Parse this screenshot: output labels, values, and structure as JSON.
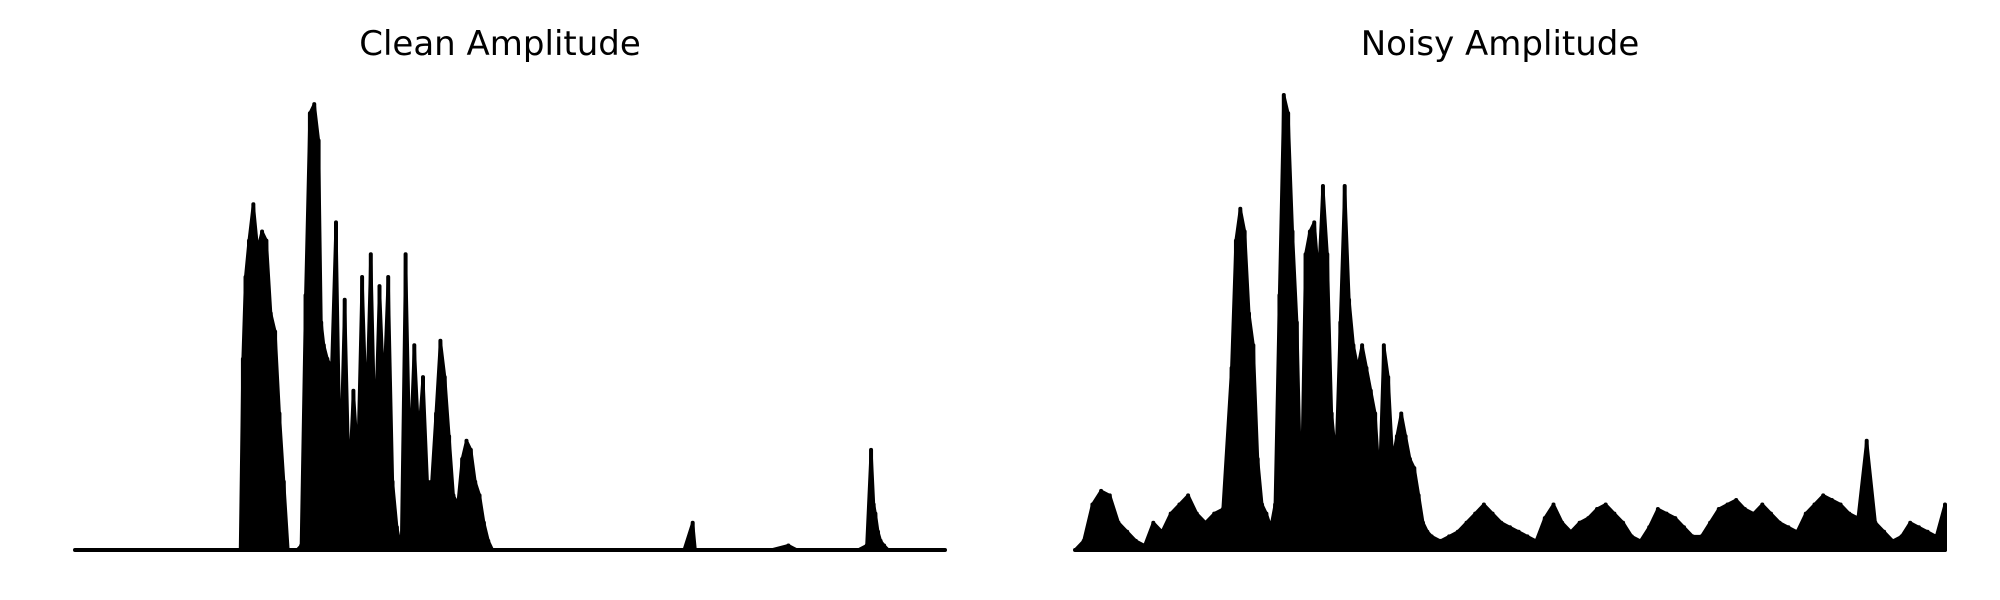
{
  "chart_data": [
    {
      "type": "area",
      "title": "Clean Amplitude",
      "xlabel": "",
      "ylabel": "",
      "axes_visible": false,
      "grid": false,
      "color": "#000000",
      "ylim": [
        0,
        1.0
      ],
      "xlim": [
        0,
        1000
      ],
      "x": [
        0,
        40,
        80,
        120,
        160,
        190,
        193,
        196,
        200,
        205,
        210,
        215,
        220,
        225,
        230,
        235,
        240,
        245,
        250,
        255,
        260,
        265,
        270,
        275,
        280,
        283,
        286,
        290,
        295,
        300,
        305,
        310,
        315,
        320,
        325,
        330,
        335,
        340,
        345,
        350,
        355,
        360,
        365,
        370,
        375,
        380,
        385,
        390,
        395,
        400,
        405,
        410,
        415,
        420,
        425,
        430,
        435,
        440,
        445,
        450,
        455,
        460,
        465,
        470,
        475,
        480,
        485,
        490,
        495,
        500,
        505,
        510,
        515,
        520,
        525,
        530,
        535,
        540,
        545,
        550,
        560,
        580,
        600,
        650,
        700,
        710,
        713,
        716,
        720,
        760,
        800,
        820,
        830,
        850,
        880,
        900,
        910,
        915,
        918,
        920,
        923,
        926,
        930,
        935,
        940,
        1000
      ],
      "y": [
        0,
        0,
        0,
        0,
        0,
        0,
        0.42,
        0.6,
        0.68,
        0.76,
        0.66,
        0.7,
        0.68,
        0.52,
        0.48,
        0.3,
        0.15,
        0.0,
        0.0,
        0.0,
        0.01,
        0.56,
        0.96,
        0.98,
        0.9,
        0.5,
        0.45,
        0.42,
        0.4,
        0.72,
        0.18,
        0.55,
        0.15,
        0.35,
        0.2,
        0.6,
        0.3,
        0.65,
        0.25,
        0.58,
        0.35,
        0.6,
        0.15,
        0.05,
        0.0,
        0.65,
        0.2,
        0.45,
        0.25,
        0.38,
        0.15,
        0.15,
        0.3,
        0.46,
        0.38,
        0.25,
        0.12,
        0.1,
        0.2,
        0.24,
        0.22,
        0.15,
        0.12,
        0.06,
        0.02,
        0.0,
        0.0,
        0.0,
        0.0,
        0.0,
        0.0,
        0.0,
        0.0,
        0.0,
        0.0,
        0.0,
        0.0,
        0.0,
        0.0,
        0.0,
        0.0,
        0.0,
        0.0,
        0.0,
        0.0,
        0.06,
        0.0,
        0.0,
        0.0,
        0.0,
        0.0,
        0.01,
        0.0,
        0.0,
        0.0,
        0.0,
        0.01,
        0.22,
        0.1,
        0.08,
        0.04,
        0.02,
        0.01,
        0.0,
        0.0,
        0.0
      ]
    },
    {
      "type": "area",
      "title": "Noisy Amplitude",
      "xlabel": "",
      "ylabel": "",
      "axes_visible": false,
      "grid": false,
      "color": "#000000",
      "ylim": [
        0,
        1.0
      ],
      "xlim": [
        0,
        1000
      ],
      "x": [
        0,
        10,
        20,
        30,
        40,
        50,
        60,
        70,
        80,
        90,
        100,
        110,
        120,
        130,
        140,
        150,
        160,
        170,
        180,
        185,
        190,
        195,
        200,
        205,
        210,
        215,
        220,
        225,
        230,
        235,
        240,
        245,
        250,
        255,
        260,
        265,
        270,
        275,
        280,
        285,
        290,
        295,
        300,
        305,
        310,
        315,
        320,
        325,
        330,
        335,
        340,
        345,
        350,
        355,
        360,
        365,
        370,
        375,
        380,
        385,
        390,
        395,
        400,
        405,
        410,
        420,
        430,
        440,
        450,
        460,
        470,
        480,
        490,
        500,
        510,
        520,
        530,
        540,
        550,
        560,
        570,
        580,
        590,
        600,
        610,
        620,
        630,
        640,
        650,
        660,
        670,
        680,
        690,
        700,
        710,
        720,
        730,
        740,
        750,
        760,
        770,
        780,
        790,
        800,
        810,
        820,
        830,
        840,
        850,
        860,
        870,
        880,
        890,
        900,
        910,
        920,
        930,
        940,
        950,
        960,
        970,
        980,
        990,
        1000
      ],
      "y": [
        0,
        0.02,
        0.1,
        0.13,
        0.12,
        0.06,
        0.04,
        0.02,
        0.01,
        0.06,
        0.04,
        0.08,
        0.1,
        0.12,
        0.08,
        0.06,
        0.08,
        0.09,
        0.4,
        0.68,
        0.75,
        0.7,
        0.52,
        0.45,
        0.2,
        0.1,
        0.08,
        0.05,
        0.1,
        0.56,
        1.0,
        0.96,
        0.7,
        0.5,
        0.1,
        0.65,
        0.7,
        0.72,
        0.6,
        0.8,
        0.65,
        0.3,
        0.2,
        0.5,
        0.8,
        0.55,
        0.45,
        0.4,
        0.45,
        0.4,
        0.35,
        0.3,
        0.15,
        0.45,
        0.38,
        0.2,
        0.25,
        0.3,
        0.25,
        0.2,
        0.18,
        0.12,
        0.06,
        0.04,
        0.03,
        0.02,
        0.03,
        0.04,
        0.06,
        0.08,
        0.1,
        0.08,
        0.06,
        0.05,
        0.04,
        0.03,
        0.02,
        0.07,
        0.1,
        0.06,
        0.04,
        0.06,
        0.07,
        0.09,
        0.1,
        0.08,
        0.06,
        0.03,
        0.02,
        0.05,
        0.09,
        0.08,
        0.07,
        0.05,
        0.03,
        0.03,
        0.06,
        0.09,
        0.1,
        0.11,
        0.09,
        0.08,
        0.1,
        0.08,
        0.06,
        0.05,
        0.04,
        0.08,
        0.1,
        0.12,
        0.11,
        0.1,
        0.08,
        0.07,
        0.24,
        0.06,
        0.04,
        0.02,
        0.03,
        0.06,
        0.05,
        0.04,
        0.03,
        0.1
      ]
    }
  ]
}
